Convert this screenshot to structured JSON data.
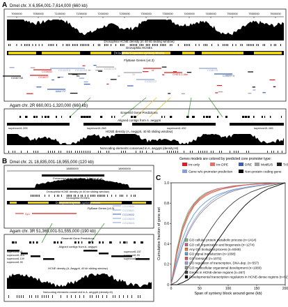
{
  "panelA": {
    "letter": "A",
    "dmel_title": "Dmel chr. X 6,954,001-7,614,000 (660 kb)",
    "dmel_ticks": [
      "7000000",
      "7050000",
      "7100000",
      "7150000",
      "7200000",
      "7250000",
      "7300000",
      "7350000",
      "7400000",
      "7450000",
      "7500000",
      "7550000",
      "7600000"
    ],
    "dmel_density_label": "Drosophila HCNE density (in 40 kb sliding window)",
    "dmel_hcnes_label": "Drosophila HCNEs",
    "dmel_synteny_label": "Drosophila 5-species synteny blocks",
    "flybase_label": "FlyBase Genes (v4.3)",
    "dmel_genes": [
      "CG3650",
      "CG32730",
      "CG1677",
      "CG15215",
      "CG1737",
      "CG15216",
      "CG32770",
      "b6",
      "Gr",
      "CG32772",
      "ct",
      "CHES-1-like",
      "CG8075",
      "CG32779"
    ],
    "agam_title": "Agam chr. 2R 660,001-1,320,000 (660 kb)",
    "ensembl_label": "Ensembl Gene Predictions",
    "aligned_label": "Aligned contigs from A. aegypti",
    "contig1": "supercont1.205",
    "contig2": "supercont1.268",
    "contig3": "supercont1.432",
    "contig4": "supercont1.165",
    "agam_density_label": "HCNE density (A. Aegypti, 40 kb sliding window)",
    "noncoding_label": "Noncoding elements conserved in A. aegypti (density>8)"
  },
  "panelB": {
    "letter": "B",
    "dmel_title": "Dmel chr. 2L 18,835,001-18,955,000 (120 kb)",
    "tick1": "18850000",
    "tick2": "18900000",
    "enhancer_label": "Enhancers regulating from Tribulys et al.",
    "density_label": "Drosophila HCNE density (in 40 kb sliding window)",
    "hcnes_label": "Drosophila HCNEs",
    "synteny_label": "Drosophila 5-species synteny blocks",
    "flybase_label": "FlyBase Genes (v4.3)",
    "genes": [
      "CG13600",
      "CG13601",
      "CG13602",
      "Sp1",
      "CG13603",
      "CG13604",
      "Nedd8",
      "CG13605"
    ],
    "agam_title": "Agam chr. 3R 51,365,001-51,555,000 (190 kb)",
    "ensembl_label": "Ensembl Gene Predictions",
    "aligned_label": "Aligned contigs from A. aegypti",
    "contigs_left": [
      "supercont1.41",
      "supercont1.314",
      "supercont1.109",
      "supercont1.90"
    ],
    "contigs_right": [
      "supercont1.157",
      "supercont1.93",
      "supercont1.45"
    ],
    "agam_density_label": "HCNE density (A. Aegypti, 40 kb sliding window)",
    "noncoding_label": "Noncoding elements conserved in A. aegypti (density>8)"
  },
  "legend": {
    "title": "Genes models are colored by predicted core promoter type:",
    "items": [
      {
        "label": "Inr-only",
        "color": "#d42020"
      },
      {
        "label": "Inr-DPE",
        "color": "#e07070"
      },
      {
        "label": "DRE",
        "color": "#3a5fb0"
      },
      {
        "label": "Motif1/6",
        "color": "#a0a0a0"
      },
      {
        "label": "TATA/Inr",
        "color": "#202020"
      },
      {
        "label": "Gene w/o promoter prediction",
        "color": "#8aa0d0"
      },
      {
        "label": "Non-protein coding gene",
        "color": "#000000"
      }
    ]
  },
  "chart_data": {
    "type": "line",
    "letter": "C",
    "xlabel": "Span of synteny block around gene (kb)",
    "ylabel": "Cumulative fraction of gene set",
    "xlim": [
      0,
      200
    ],
    "ylim": [
      0,
      1.0
    ],
    "xticks": [
      "0",
      "50",
      "100",
      "150",
      "200"
    ],
    "yticks": [
      "0",
      "0.2",
      "0.4",
      "0.6",
      "0.8",
      "1.0"
    ],
    "x": [
      0,
      10,
      20,
      30,
      40,
      50,
      60,
      70,
      80,
      90,
      100,
      110,
      120,
      130,
      140,
      150,
      160,
      170,
      180,
      190,
      200
    ],
    "series": [
      {
        "name": "GO cellular protein metabolic process (n=1414)",
        "color": "#7fbf7f",
        "values": [
          0,
          0.35,
          0.58,
          0.72,
          0.8,
          0.86,
          0.9,
          0.92,
          0.94,
          0.95,
          0.96,
          0.97,
          0.975,
          0.98,
          0.985,
          0.99,
          0.99,
          0.993,
          0.995,
          0.997,
          1.0
        ]
      },
      {
        "name": "GO cell organization and biogenesis (n=1274)",
        "color": "#c06090",
        "values": [
          0,
          0.33,
          0.56,
          0.7,
          0.79,
          0.85,
          0.89,
          0.92,
          0.94,
          0.95,
          0.96,
          0.97,
          0.975,
          0.98,
          0.985,
          0.99,
          0.99,
          0.993,
          0.995,
          0.997,
          1.0
        ]
      },
      {
        "name": "Any GO biological process (n=5049)",
        "color": "#e08040",
        "values": [
          0,
          0.32,
          0.55,
          0.69,
          0.78,
          0.84,
          0.88,
          0.91,
          0.93,
          0.94,
          0.955,
          0.965,
          0.972,
          0.978,
          0.983,
          0.987,
          0.99,
          0.993,
          0.995,
          0.997,
          1.0
        ]
      },
      {
        "name": "GO signal transduction (n=1008)",
        "color": "#60a0d0",
        "values": [
          0,
          0.25,
          0.45,
          0.59,
          0.69,
          0.76,
          0.81,
          0.85,
          0.88,
          0.9,
          0.92,
          0.935,
          0.945,
          0.955,
          0.965,
          0.972,
          0.98,
          0.985,
          0.99,
          0.995,
          1.0
        ]
      },
      {
        "name": "GO transport (n=1072)",
        "color": "#d06060",
        "values": [
          0,
          0.3,
          0.53,
          0.67,
          0.77,
          0.83,
          0.87,
          0.9,
          0.92,
          0.94,
          0.95,
          0.96,
          0.97,
          0.977,
          0.983,
          0.987,
          0.99,
          0.993,
          0.995,
          0.997,
          1.0
        ]
      },
      {
        "name": "GO regulation of transcription, DNA-dep. (n=557)",
        "color": "#a0a0e0",
        "values": [
          0,
          0.22,
          0.4,
          0.53,
          0.63,
          0.71,
          0.77,
          0.82,
          0.86,
          0.89,
          0.91,
          0.93,
          0.94,
          0.95,
          0.96,
          0.97,
          0.978,
          0.985,
          0.99,
          0.995,
          1.0
        ]
      },
      {
        "name": "GO multicellular organismal development (n=1080)",
        "color": "#909090",
        "values": [
          0,
          0.2,
          0.38,
          0.51,
          0.61,
          0.69,
          0.75,
          0.8,
          0.84,
          0.87,
          0.9,
          0.92,
          0.935,
          0.948,
          0.958,
          0.967,
          0.975,
          0.983,
          0.99,
          0.995,
          1.0
        ]
      },
      {
        "name": "Genes in HCNE-dense regions (n=267)",
        "color": "#404040",
        "values": [
          0,
          0.03,
          0.09,
          0.17,
          0.26,
          0.36,
          0.46,
          0.55,
          0.63,
          0.7,
          0.76,
          0.81,
          0.85,
          0.88,
          0.91,
          0.93,
          0.95,
          0.965,
          0.98,
          0.99,
          1.0
        ]
      },
      {
        "name": "Developmental transcription regulators in HCNE-dense regions (n=62)",
        "color": "#000000",
        "values": [
          0,
          0.0,
          0.02,
          0.05,
          0.1,
          0.17,
          0.25,
          0.33,
          0.42,
          0.5,
          0.58,
          0.65,
          0.72,
          0.78,
          0.83,
          0.87,
          0.91,
          0.94,
          0.96,
          0.98,
          1.0
        ]
      }
    ]
  }
}
